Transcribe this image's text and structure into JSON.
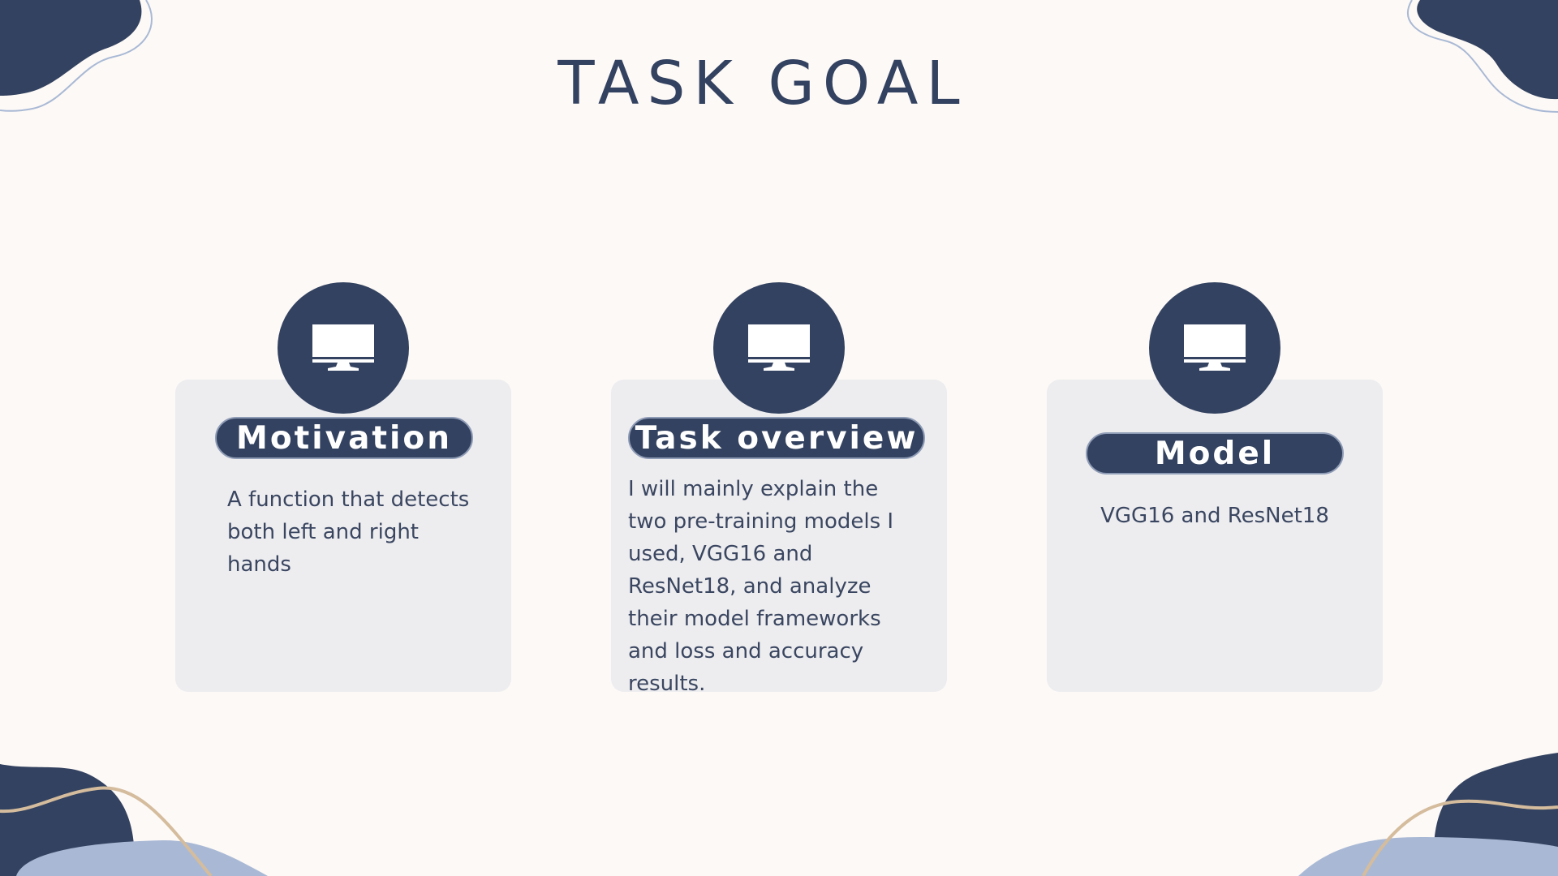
{
  "slide": {
    "title": "TASK GOAL"
  },
  "cards": [
    {
      "heading": "Motivation",
      "body": "A function that detects both left and right hands",
      "icon": "monitor-icon"
    },
    {
      "heading": "Task overview",
      "body": "I will mainly explain the two pre-training models I used, VGG16 and ResNet18, and analyze their model frameworks and loss and accuracy results.",
      "icon": "monitor-icon"
    },
    {
      "heading": "Model",
      "body": "VGG16 and ResNet18",
      "icon": "monitor-icon"
    }
  ],
  "colors": {
    "background": "#fdf9f6",
    "navy": "#334260",
    "card": "#ededf0",
    "light_blue": "#a9b9d5",
    "tan": "#d4bc9d"
  }
}
